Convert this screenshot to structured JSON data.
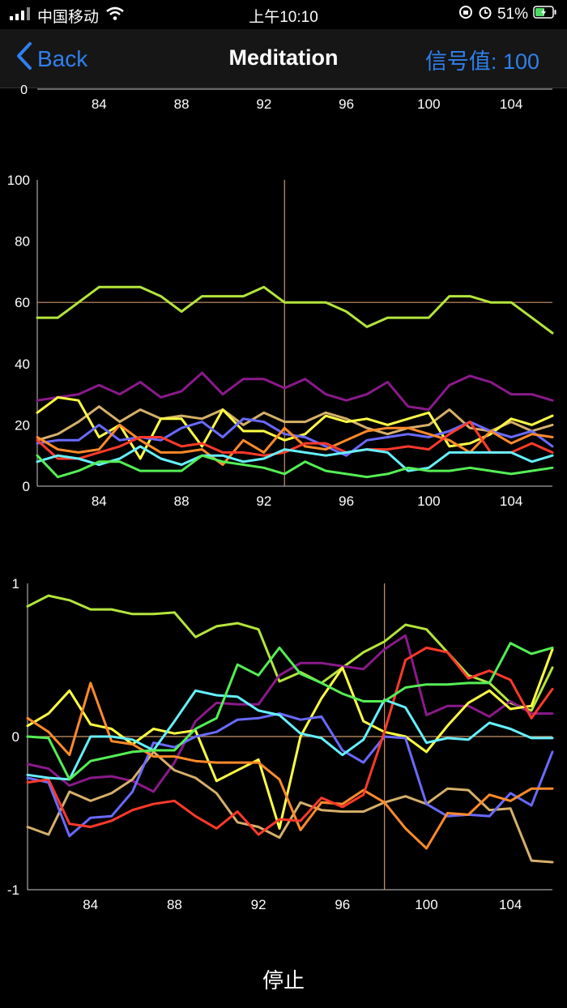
{
  "status_bar": {
    "carrier": "中国移动",
    "time": "上午10:10",
    "battery": "51%"
  },
  "nav": {
    "back_label": "Back",
    "title": "Meditation",
    "signal_label": "信号值: 100"
  },
  "stop_label": "停止",
  "colors": {
    "accent": "#2f80ed",
    "ref_line": "#c9966a",
    "series": [
      "#b4e53c",
      "#8a1a8a",
      "#d6b06a",
      "#ffff44",
      "#6a6aff",
      "#ff8a2a",
      "#ff3a2a",
      "#66f0ff",
      "#55ee55"
    ]
  },
  "chart_data": [
    {
      "type": "line",
      "title": "",
      "x_tick_labels": [
        "84",
        "88",
        "92",
        "96",
        "100",
        "104"
      ],
      "y_tick_labels": [
        "0"
      ],
      "series": []
    },
    {
      "type": "line",
      "title": "",
      "x": [
        81,
        82,
        83,
        84,
        85,
        86,
        87,
        88,
        89,
        90,
        91,
        92,
        93,
        94,
        95,
        96,
        97,
        98,
        99,
        100,
        101,
        102,
        103,
        104,
        105,
        106
      ],
      "xlim": [
        81,
        106
      ],
      "ylim": [
        0,
        100
      ],
      "x_tick_labels": [
        "84",
        "88",
        "92",
        "96",
        "100",
        "104"
      ],
      "y_tick_labels": [
        "0",
        "20",
        "40",
        "60",
        "80",
        "100"
      ],
      "reference_lines": {
        "h": 60,
        "v": 93
      },
      "series": [
        {
          "name": "s1",
          "color": "#b4e53c",
          "values": [
            55,
            55,
            60,
            65,
            65,
            65,
            62,
            57,
            62,
            62,
            62,
            65,
            60,
            60,
            60,
            57,
            52,
            55,
            55,
            55,
            62,
            62,
            60,
            60,
            55,
            50
          ]
        },
        {
          "name": "s2",
          "color": "#8a1a8a",
          "values": [
            28,
            29,
            30,
            33,
            30,
            34,
            29,
            31,
            37,
            30,
            35,
            35,
            32,
            35,
            30,
            28,
            30,
            34,
            26,
            25,
            33,
            36,
            34,
            30,
            30,
            28
          ]
        },
        {
          "name": "s3",
          "color": "#d6b06a",
          "values": [
            15,
            17,
            21,
            26,
            21,
            25,
            22,
            23,
            22,
            25,
            20,
            24,
            21,
            21,
            24,
            22,
            19,
            17,
            19,
            20,
            25,
            19,
            18,
            21,
            18,
            20
          ]
        },
        {
          "name": "s4",
          "color": "#ffff44",
          "values": [
            24,
            29,
            28,
            16,
            20,
            9,
            22,
            22,
            13,
            25,
            18,
            18,
            15,
            17,
            23,
            21,
            22,
            20,
            22,
            24,
            13,
            14,
            17,
            22,
            20,
            23
          ]
        },
        {
          "name": "s5",
          "color": "#6a6aff",
          "values": [
            14,
            15,
            15,
            20,
            15,
            16,
            15,
            19,
            21,
            16,
            22,
            21,
            17,
            16,
            13,
            10,
            15,
            16,
            17,
            16,
            18,
            21,
            18,
            16,
            18,
            13
          ]
        },
        {
          "name": "s6",
          "color": "#ff8a2a",
          "values": [
            16,
            12,
            11,
            12,
            20,
            15,
            11,
            11,
            12,
            7,
            15,
            11,
            19,
            13,
            12,
            15,
            18,
            19,
            19,
            17,
            15,
            11,
            18,
            14,
            17,
            16
          ]
        },
        {
          "name": "s7",
          "color": "#ff3a2a",
          "values": [
            15,
            9,
            9,
            11,
            13,
            16,
            16,
            13,
            14,
            11,
            11,
            10,
            11,
            14,
            14,
            11,
            12,
            12,
            13,
            12,
            17,
            21,
            11,
            11,
            14,
            11
          ]
        },
        {
          "name": "s8",
          "color": "#66f0ff",
          "values": [
            8,
            10,
            9,
            7,
            9,
            13,
            9,
            7,
            10,
            10,
            8,
            9,
            12,
            11,
            10,
            11,
            12,
            11,
            5,
            6,
            11,
            11,
            11,
            11,
            8,
            10
          ]
        },
        {
          "name": "s9",
          "color": "#55ee55",
          "values": [
            10,
            3,
            5,
            8,
            8,
            5,
            5,
            5,
            10,
            8,
            7,
            6,
            4,
            8,
            5,
            4,
            3,
            4,
            6,
            5,
            5,
            6,
            5,
            4,
            5,
            6
          ]
        }
      ]
    },
    {
      "type": "line",
      "title": "",
      "x": [
        81,
        82,
        83,
        84,
        85,
        86,
        87,
        88,
        89,
        90,
        91,
        92,
        93,
        94,
        95,
        96,
        97,
        98,
        99,
        100,
        101,
        102,
        103,
        104,
        105,
        106
      ],
      "xlim": [
        81,
        106
      ],
      "ylim": [
        -1,
        1
      ],
      "x_tick_labels": [
        "84",
        "88",
        "92",
        "96",
        "100",
        "104"
      ],
      "y_tick_labels": [
        "1",
        "0",
        "-1"
      ],
      "reference_lines": {
        "h": 0,
        "v": 98
      },
      "series": [
        {
          "name": "s1",
          "color": "#b4e53c",
          "values": [
            0.85,
            0.92,
            0.89,
            0.83,
            0.83,
            0.8,
            0.8,
            0.81,
            0.65,
            0.72,
            0.74,
            0.7,
            0.36,
            0.42,
            0.35,
            0.45,
            0.55,
            0.62,
            0.73,
            0.7,
            0.55,
            0.4,
            0.35,
            0.22,
            0.17,
            0.45
          ]
        },
        {
          "name": "s2",
          "color": "#8a1a8a",
          "values": [
            -0.18,
            -0.21,
            -0.32,
            -0.27,
            -0.26,
            -0.29,
            -0.36,
            -0.17,
            0.1,
            0.22,
            0.21,
            0.21,
            0.4,
            0.48,
            0.48,
            0.46,
            0.44,
            0.57,
            0.66,
            0.14,
            0.2,
            0.2,
            0.13,
            0.23,
            0.15,
            0.15
          ]
        },
        {
          "name": "s3",
          "color": "#d6b06a",
          "values": [
            -0.59,
            -0.64,
            -0.36,
            -0.42,
            -0.37,
            -0.28,
            -0.1,
            -0.22,
            -0.27,
            -0.37,
            -0.56,
            -0.59,
            -0.66,
            -0.43,
            -0.48,
            -0.49,
            -0.49,
            -0.43,
            -0.39,
            -0.44,
            -0.34,
            -0.35,
            -0.48,
            -0.47,
            -0.81,
            -0.82
          ]
        },
        {
          "name": "s4",
          "color": "#ffff44",
          "values": [
            0.07,
            0.15,
            0.3,
            0.08,
            0.05,
            -0.05,
            0.05,
            0.02,
            0.04,
            -0.29,
            -0.22,
            -0.15,
            -0.6,
            0.0,
            0.25,
            0.45,
            0.1,
            0.03,
            0.0,
            -0.1,
            0.07,
            0.22,
            0.3,
            0.18,
            0.2,
            0.57
          ]
        },
        {
          "name": "s5",
          "color": "#6a6aff",
          "values": [
            -0.27,
            -0.3,
            -0.65,
            -0.53,
            -0.52,
            -0.36,
            -0.04,
            -0.07,
            0.0,
            0.03,
            0.11,
            0.12,
            0.15,
            0.11,
            0.13,
            -0.09,
            -0.17,
            0.0,
            -0.01,
            -0.44,
            -0.52,
            -0.51,
            -0.52,
            -0.37,
            -0.45,
            -0.1
          ]
        },
        {
          "name": "s6",
          "color": "#ff8a2a",
          "values": [
            0.12,
            0.03,
            -0.12,
            0.35,
            -0.03,
            -0.05,
            -0.13,
            -0.13,
            -0.16,
            -0.17,
            -0.17,
            -0.17,
            -0.28,
            -0.61,
            -0.43,
            -0.44,
            -0.35,
            -0.43,
            -0.6,
            -0.73,
            -0.5,
            -0.51,
            -0.38,
            -0.42,
            -0.34,
            -0.34
          ]
        },
        {
          "name": "s7",
          "color": "#ff3a2a",
          "values": [
            -0.3,
            -0.28,
            -0.57,
            -0.59,
            -0.55,
            -0.48,
            -0.44,
            -0.42,
            -0.52,
            -0.6,
            -0.49,
            -0.64,
            -0.54,
            -0.55,
            -0.4,
            -0.46,
            -0.38,
            0.03,
            0.5,
            0.58,
            0.55,
            0.38,
            0.43,
            0.37,
            0.12,
            0.31
          ]
        },
        {
          "name": "s8",
          "color": "#66f0ff",
          "values": [
            -0.25,
            -0.27,
            -0.28,
            0.0,
            0.0,
            -0.02,
            -0.09,
            0.1,
            0.3,
            0.27,
            0.26,
            0.17,
            0.14,
            0.02,
            -0.01,
            -0.12,
            -0.02,
            0.24,
            0.19,
            -0.04,
            -0.01,
            -0.02,
            0.09,
            0.05,
            -0.01,
            -0.01
          ]
        },
        {
          "name": "s9",
          "color": "#55ee55",
          "values": [
            0.0,
            -0.01,
            -0.28,
            -0.16,
            -0.13,
            -0.1,
            -0.09,
            -0.09,
            0.05,
            0.12,
            0.47,
            0.4,
            0.58,
            0.41,
            0.35,
            0.28,
            0.23,
            0.23,
            0.32,
            0.34,
            0.34,
            0.35,
            0.35,
            0.61,
            0.54,
            0.58
          ]
        }
      ]
    }
  ]
}
